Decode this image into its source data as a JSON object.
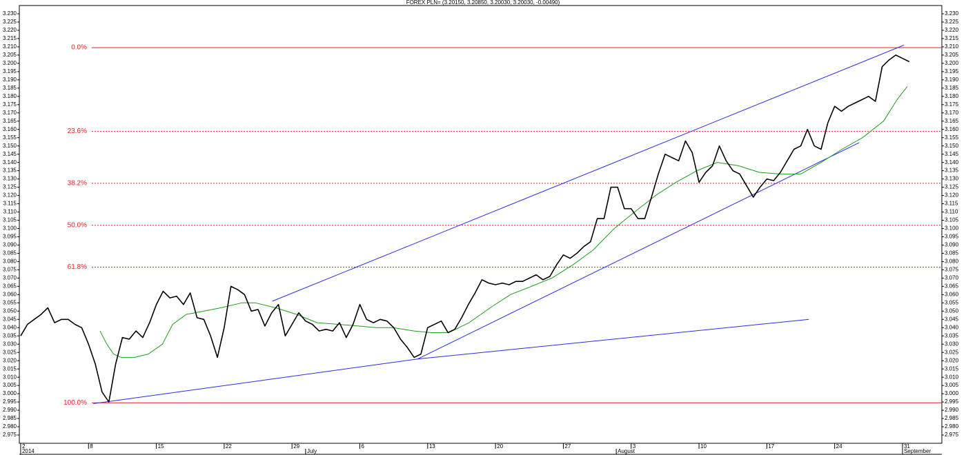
{
  "chart_data": {
    "type": "line",
    "title": "FOREX PLN= (3.20150, 3.20850, 3.20030, 3.20030, -0.00490)",
    "xlim": [
      -0.02,
      13.58
    ],
    "ylim": [
      2.97,
      3.235
    ],
    "xticks": [
      {
        "value": 0,
        "label": "2"
      },
      {
        "value": 1,
        "label": "8"
      },
      {
        "value": 2,
        "label": "15"
      },
      {
        "value": 3,
        "label": "22"
      },
      {
        "value": 4,
        "label": "29"
      },
      {
        "value": 5,
        "label": "6"
      },
      {
        "value": 6,
        "label": "13"
      },
      {
        "value": 7,
        "label": "20"
      },
      {
        "value": 8,
        "label": "27"
      },
      {
        "value": 9,
        "label": "3"
      },
      {
        "value": 10,
        "label": "10"
      },
      {
        "value": 11,
        "label": "17"
      },
      {
        "value": 12,
        "label": "24"
      },
      {
        "value": 13,
        "label": "31"
      }
    ],
    "month_labels": [
      {
        "value": 0,
        "label": "2014"
      },
      {
        "value": 4.2,
        "label": "July"
      },
      {
        "value": 8.78,
        "label": "August"
      },
      {
        "value": 13,
        "label": "September"
      }
    ],
    "yticks": [
      {
        "value": 2.975,
        "label": "2.975"
      },
      {
        "value": 2.98,
        "label": "2.980"
      },
      {
        "value": 2.985,
        "label": "2.985"
      },
      {
        "value": 2.99,
        "label": "2.990"
      },
      {
        "value": 2.995,
        "label": "2.995"
      },
      {
        "value": 3.0,
        "label": "3.000"
      },
      {
        "value": 3.005,
        "label": "3.005"
      },
      {
        "value": 3.01,
        "label": "3.010"
      },
      {
        "value": 3.015,
        "label": "3.015"
      },
      {
        "value": 3.02,
        "label": "3.020"
      },
      {
        "value": 3.025,
        "label": "3.025"
      },
      {
        "value": 3.03,
        "label": "3.030"
      },
      {
        "value": 3.035,
        "label": "3.035"
      },
      {
        "value": 3.04,
        "label": "3.040"
      },
      {
        "value": 3.045,
        "label": "3.045"
      },
      {
        "value": 3.05,
        "label": "3.050"
      },
      {
        "value": 3.055,
        "label": "3.055"
      },
      {
        "value": 3.06,
        "label": "3.060"
      },
      {
        "value": 3.065,
        "label": "3.065"
      },
      {
        "value": 3.07,
        "label": "3.070"
      },
      {
        "value": 3.075,
        "label": "3.075"
      },
      {
        "value": 3.08,
        "label": "3.080"
      },
      {
        "value": 3.085,
        "label": "3.085"
      },
      {
        "value": 3.09,
        "label": "3.090"
      },
      {
        "value": 3.095,
        "label": "3.095"
      },
      {
        "value": 3.1,
        "label": "3.100"
      },
      {
        "value": 3.105,
        "label": "3.105"
      },
      {
        "value": 3.11,
        "label": "3.110"
      },
      {
        "value": 3.115,
        "label": "3.115"
      },
      {
        "value": 3.12,
        "label": "3.120"
      },
      {
        "value": 3.125,
        "label": "3.125"
      },
      {
        "value": 3.13,
        "label": "3.130"
      },
      {
        "value": 3.135,
        "label": "3.135"
      },
      {
        "value": 3.14,
        "label": "3.140"
      },
      {
        "value": 3.145,
        "label": "3.145"
      },
      {
        "value": 3.15,
        "label": "3.150"
      },
      {
        "value": 3.155,
        "label": "3.155"
      },
      {
        "value": 3.16,
        "label": "3.160"
      },
      {
        "value": 3.165,
        "label": "3.165"
      },
      {
        "value": 3.17,
        "label": "3.170"
      },
      {
        "value": 3.175,
        "label": "3.175"
      },
      {
        "value": 3.18,
        "label": "3.180"
      },
      {
        "value": 3.185,
        "label": "3.185"
      },
      {
        "value": 3.19,
        "label": "3.190"
      },
      {
        "value": 3.195,
        "label": "3.195"
      },
      {
        "value": 3.2,
        "label": "3.200"
      },
      {
        "value": 3.205,
        "label": "3.205"
      },
      {
        "value": 3.21,
        "label": "3.210"
      },
      {
        "value": 3.215,
        "label": "3.215"
      },
      {
        "value": 3.22,
        "label": "3.220"
      },
      {
        "value": 3.225,
        "label": "3.225"
      },
      {
        "value": 3.23,
        "label": "3.230"
      }
    ],
    "series": [
      {
        "color": "#000000",
        "width": 1.6,
        "x": [
          0,
          0.1,
          0.2,
          0.3,
          0.4,
          0.5,
          0.6,
          0.7,
          0.8,
          0.9,
          1.0,
          1.1,
          1.2,
          1.3,
          1.4,
          1.5,
          1.6,
          1.7,
          1.8,
          1.9,
          2.0,
          2.1,
          2.2,
          2.3,
          2.4,
          2.5,
          2.6,
          2.7,
          2.8,
          2.9,
          3.0,
          3.1,
          3.2,
          3.3,
          3.4,
          3.5,
          3.6,
          3.7,
          3.8,
          3.9,
          4.0,
          4.1,
          4.2,
          4.3,
          4.4,
          4.5,
          4.6,
          4.7,
          4.8,
          4.9,
          5.0,
          5.1,
          5.2,
          5.3,
          5.4,
          5.5,
          5.6,
          5.7,
          5.8,
          5.9,
          6.0,
          6.1,
          6.2,
          6.3,
          6.4,
          6.5,
          6.6,
          6.7,
          6.8,
          6.9,
          7.0,
          7.1,
          7.2,
          7.3,
          7.4,
          7.5,
          7.6,
          7.7,
          7.8,
          7.9,
          8.0,
          8.1,
          8.2,
          8.3,
          8.4,
          8.5,
          8.6,
          8.7,
          8.8,
          8.9,
          9.0,
          9.1,
          9.2,
          9.3,
          9.4,
          9.5,
          9.6,
          9.7,
          9.8,
          9.9,
          10.0,
          10.1,
          10.2,
          10.3,
          10.4,
          10.5,
          10.6,
          10.7,
          10.8,
          10.9,
          11.0,
          11.1,
          11.2,
          11.3,
          11.4,
          11.5,
          11.6,
          11.7,
          11.8,
          11.9,
          12.0,
          12.1,
          12.2,
          12.3,
          12.4,
          12.5,
          12.6,
          12.7,
          12.8,
          12.9,
          13.0,
          13.1
        ],
        "values": [
          3.035,
          3.042,
          3.045,
          3.048,
          3.052,
          3.043,
          3.045,
          3.045,
          3.042,
          3.04,
          3.03,
          3.018,
          3.001,
          2.995,
          3.018,
          3.034,
          3.033,
          3.038,
          3.034,
          3.043,
          3.054,
          3.062,
          3.058,
          3.059,
          3.054,
          3.061,
          3.046,
          3.045,
          3.035,
          3.022,
          3.04,
          3.065,
          3.063,
          3.06,
          3.05,
          3.051,
          3.041,
          3.049,
          3.054,
          3.035,
          3.042,
          3.049,
          3.044,
          3.042,
          3.038,
          3.039,
          3.038,
          3.043,
          3.034,
          3.042,
          3.054,
          3.045,
          3.043,
          3.045,
          3.044,
          3.04,
          3.033,
          3.028,
          3.022,
          3.024,
          3.04,
          3.042,
          3.044,
          3.037,
          3.039,
          3.046,
          3.054,
          3.061,
          3.069,
          3.067,
          3.066,
          3.067,
          3.066,
          3.068,
          3.068,
          3.07,
          3.072,
          3.069,
          3.071,
          3.078,
          3.084,
          3.082,
          3.085,
          3.089,
          3.092,
          3.106,
          3.106,
          3.125,
          3.125,
          3.112,
          3.112,
          3.106,
          3.106,
          3.119,
          3.133,
          3.145,
          3.143,
          3.141,
          3.153,
          3.146,
          3.128,
          3.134,
          3.138,
          3.15,
          3.141,
          3.135,
          3.133,
          3.126,
          3.119,
          3.125,
          3.13,
          3.129,
          3.134,
          3.141,
          3.148,
          3.15,
          3.16,
          3.15,
          3.148,
          3.164,
          3.174,
          3.171,
          3.174,
          3.176,
          3.178,
          3.18,
          3.177,
          3.198,
          3.202,
          3.205,
          3.203,
          3.201
        ]
      },
      {
        "color": "#1a9e1a",
        "width": 1,
        "x": [
          1.17,
          1.27,
          1.37,
          1.48,
          1.68,
          1.88,
          2.09,
          2.24,
          2.44,
          2.7,
          2.95,
          3.26,
          3.46,
          3.76,
          4.07,
          4.37,
          4.68,
          4.98,
          5.24,
          5.49,
          5.8,
          6.05,
          6.31,
          6.61,
          6.92,
          7.22,
          7.53,
          7.83,
          8.14,
          8.44,
          8.75,
          9.05,
          9.36,
          9.66,
          9.97,
          10.27,
          10.58,
          10.89,
          11.19,
          11.5,
          11.8,
          12.11,
          12.41,
          12.72,
          12.92,
          13.07
        ],
        "values": [
          3.038,
          3.03,
          3.024,
          3.022,
          3.022,
          3.024,
          3.03,
          3.042,
          3.048,
          3.05,
          3.052,
          3.055,
          3.055,
          3.052,
          3.048,
          3.043,
          3.042,
          3.041,
          3.04,
          3.04,
          3.038,
          3.037,
          3.037,
          3.043,
          3.052,
          3.06,
          3.065,
          3.07,
          3.078,
          3.087,
          3.1,
          3.11,
          3.12,
          3.128,
          3.135,
          3.14,
          3.138,
          3.134,
          3.133,
          3.133,
          3.14,
          3.148,
          3.155,
          3.165,
          3.178,
          3.186
        ]
      }
    ],
    "trend_color": "#2a2ae6",
    "trend_lines": [
      {
        "x": [
          1.07,
          5.85
        ],
        "values": [
          2.994,
          3.021
        ]
      },
      {
        "x": [
          5.85,
          11.62
        ],
        "values": [
          3.021,
          3.045
        ]
      },
      {
        "x": [
          5.85,
          12.36
        ],
        "values": [
          3.021,
          3.152
        ]
      },
      {
        "x": [
          3.71,
          13.02
        ],
        "values": [
          3.056,
          3.211
        ]
      }
    ],
    "fib_color": "#e62020",
    "fib_levels": [
      {
        "value": 3.2095,
        "label": "0.0%",
        "dashed": false
      },
      {
        "value": 3.1588,
        "label": "23.6%",
        "dashed": true
      },
      {
        "value": 3.1274,
        "label": "38.2%",
        "dashed": true
      },
      {
        "value": 3.102,
        "label": "50.0%",
        "dashed": true
      },
      {
        "value": 3.0766,
        "label": "61.8%",
        "dashed": true
      },
      {
        "value": 2.9945,
        "label": "100.0%",
        "dashed": false
      }
    ]
  }
}
